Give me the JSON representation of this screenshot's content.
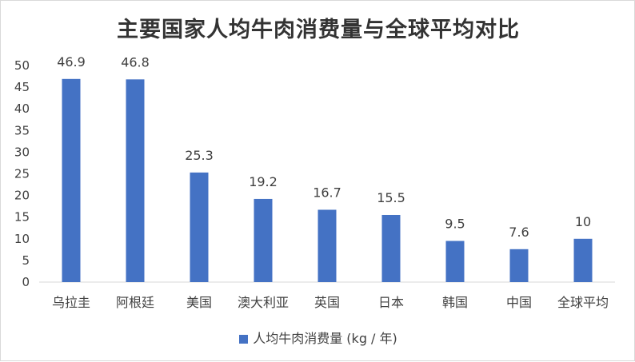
{
  "chart_data": {
    "type": "bar",
    "title": "主要国家人均牛肉消费量与全球平均对比",
    "categories": [
      "乌拉圭",
      "阿根廷",
      "美国",
      "澳大利亚",
      "英国",
      "日本",
      "韩国",
      "中国",
      "全球平均"
    ],
    "series": [
      {
        "name": "人均牛肉消费量 (kg / 年)",
        "values": [
          46.9,
          46.8,
          25.3,
          19.2,
          16.7,
          15.5,
          9.5,
          7.6,
          10
        ],
        "labels": [
          "46.9",
          "46.8",
          "25.3",
          "19.2",
          "16.7",
          "15.5",
          "9.5",
          "7.6",
          "10"
        ]
      }
    ],
    "yticks": [
      "0",
      "5",
      "10",
      "15",
      "20",
      "25",
      "30",
      "35",
      "40",
      "45",
      "50"
    ],
    "ylim": [
      0,
      50
    ],
    "grid": false,
    "legend": "bottom",
    "color": "#4472c4"
  }
}
